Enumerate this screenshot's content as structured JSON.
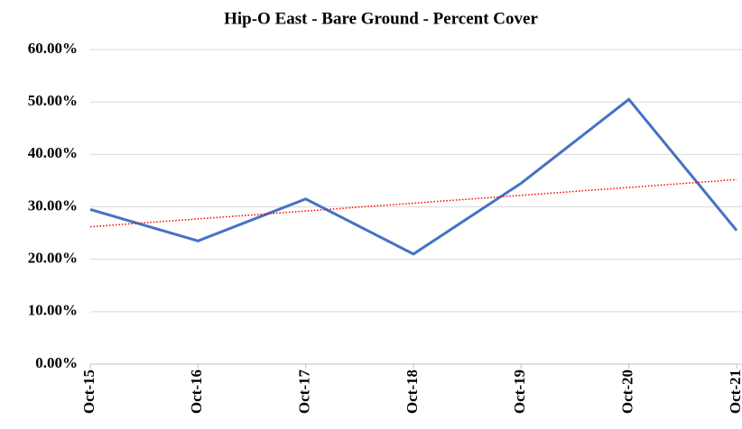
{
  "chart_data": {
    "type": "line",
    "title": "Hip-O East -  Bare Ground - Percent Cover",
    "categories": [
      "Oct-15",
      "Oct-16",
      "Oct-17",
      "Oct-18",
      "Oct-19",
      "Oct-20",
      "Oct-21"
    ],
    "series": [
      {
        "color": "#4472c4",
        "values": [
          29.5,
          23.5,
          31.5,
          21,
          34.5,
          50.5,
          25.5
        ]
      }
    ],
    "trendline": {
      "color": "#ff0000",
      "values": [
        26.2,
        35.2
      ]
    },
    "ylim": [
      0,
      60
    ],
    "yticks": [
      {
        "value": 0,
        "label": "0.00%"
      },
      {
        "value": 10,
        "label": "10.00%"
      },
      {
        "value": 20,
        "label": "20.00%"
      },
      {
        "value": 30,
        "label": "30.00%"
      },
      {
        "value": 40,
        "label": "40.00%"
      },
      {
        "value": 50,
        "label": "50.00%"
      },
      {
        "value": 60,
        "label": "60.00%"
      }
    ],
    "grid": true
  }
}
